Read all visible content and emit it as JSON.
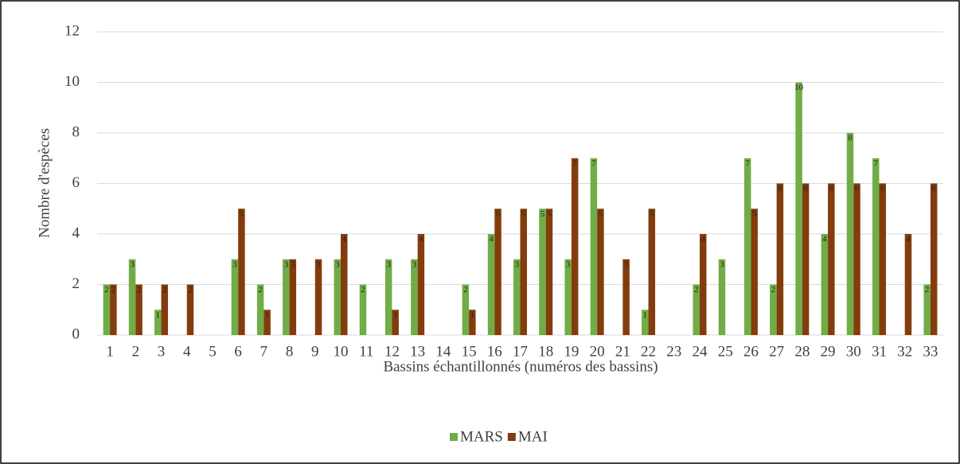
{
  "chart_data": {
    "type": "bar",
    "x_label": "Bassins échantillonnés (numéros des bassins)",
    "y_label": "Nombre d'espèces",
    "categories": [
      "1",
      "2",
      "3",
      "4",
      "5",
      "6",
      "7",
      "8",
      "9",
      "10",
      "11",
      "12",
      "13",
      "14",
      "15",
      "16",
      "17",
      "18",
      "19",
      "20",
      "21",
      "22",
      "23",
      "24",
      "25",
      "26",
      "27",
      "28",
      "29",
      "30",
      "31",
      "32",
      "33"
    ],
    "series": [
      {
        "name": "MARS",
        "color": "#70ad47",
        "values": [
          2,
          3,
          1,
          0,
          0,
          3,
          2,
          3,
          0,
          3,
          2,
          3,
          3,
          0,
          2,
          4,
          3,
          5,
          3,
          7,
          0,
          1,
          0,
          2,
          3,
          7,
          2,
          10,
          4,
          8,
          7,
          0,
          2
        ]
      },
      {
        "name": "MAI",
        "color": "#843c0c",
        "values": [
          2,
          2,
          2,
          2,
          0,
          5,
          1,
          3,
          3,
          4,
          0,
          1,
          4,
          0,
          1,
          5,
          5,
          5,
          7,
          5,
          3,
          5,
          0,
          4,
          0,
          5,
          6,
          6,
          6,
          6,
          6,
          4,
          6
        ]
      }
    ],
    "ylim": [
      0,
      12
    ],
    "yticks": [
      0,
      2,
      4,
      6,
      8,
      10,
      12
    ],
    "grid": true,
    "legend": "bottom"
  }
}
